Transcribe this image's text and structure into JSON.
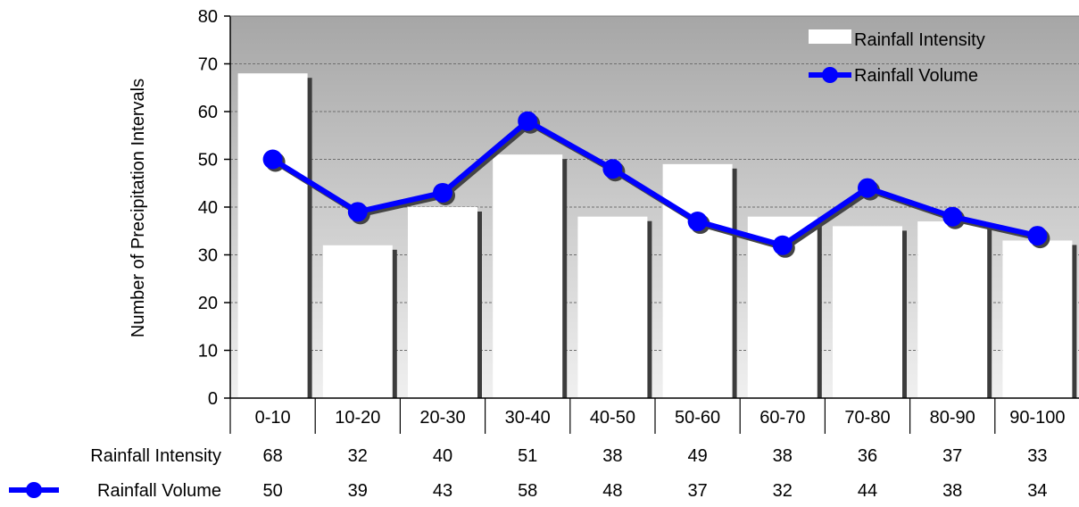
{
  "chart_data": {
    "type": "bar",
    "categories": [
      "0-10",
      "10-20",
      "20-30",
      "30-40",
      "40-50",
      "50-60",
      "60-70",
      "70-80",
      "80-90",
      "90-100"
    ],
    "series": [
      {
        "name": "Rainfall Intensity",
        "type": "bar",
        "values": [
          68,
          32,
          40,
          51,
          38,
          49,
          38,
          36,
          37,
          33
        ],
        "color": "#ffffff"
      },
      {
        "name": "Rainfall Volume",
        "type": "line",
        "values": [
          50,
          39,
          43,
          58,
          48,
          37,
          32,
          44,
          38,
          34
        ],
        "color": "#0000ff"
      }
    ],
    "ylabel": "Number of Precipitation Intervals",
    "ylim": [
      0,
      80
    ],
    "yticks": [
      0,
      10,
      20,
      30,
      40,
      50,
      60,
      70,
      80
    ],
    "grid": true,
    "legend": "top-right",
    "data_table": true,
    "plot_background": "#a6a6a6"
  }
}
